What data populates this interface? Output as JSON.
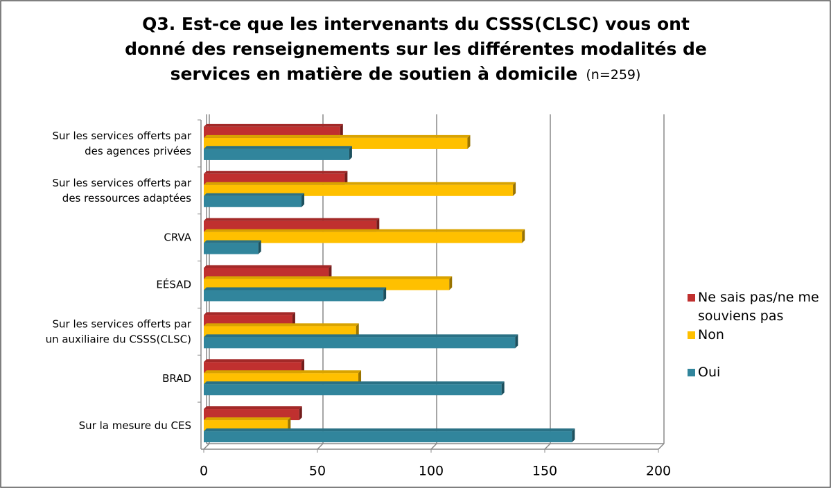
{
  "chart_data": {
    "type": "bar",
    "orientation": "horizontal",
    "title": [
      "Q3. Est-ce que les intervenants du CSSS(CLSC) vous ont",
      "donné des renseignements sur les différentes modalités de",
      "services en matière de soutien à domicile"
    ],
    "subtitle": "(n=259)",
    "categories": [
      [
        "Sur les services offerts par",
        "des agences privées"
      ],
      [
        "Sur les services offerts par",
        "des ressources adaptées"
      ],
      [
        "CRVA"
      ],
      [
        "EÉSAD"
      ],
      [
        "Sur les services offerts par",
        "un auxiliaire du CSSS(CLSC)"
      ],
      [
        "BRAD"
      ],
      [
        "Sur la mesure du CES"
      ]
    ],
    "series": [
      {
        "name": "Ne sais pas/ne me souviens pas",
        "color": "#c0302f",
        "values": [
          60,
          62,
          76,
          55,
          39,
          43,
          42
        ]
      },
      {
        "name": "Non",
        "color": "#ffc000",
        "values": [
          116,
          136,
          140,
          108,
          67,
          68,
          37
        ]
      },
      {
        "name": "Oui",
        "color": "#31859c",
        "values": [
          64,
          43,
          24,
          79,
          137,
          131,
          162
        ]
      }
    ],
    "xlim": [
      0,
      200
    ],
    "xticks": [
      0,
      50,
      100,
      150,
      200
    ],
    "grid": true,
    "legend": "right"
  }
}
